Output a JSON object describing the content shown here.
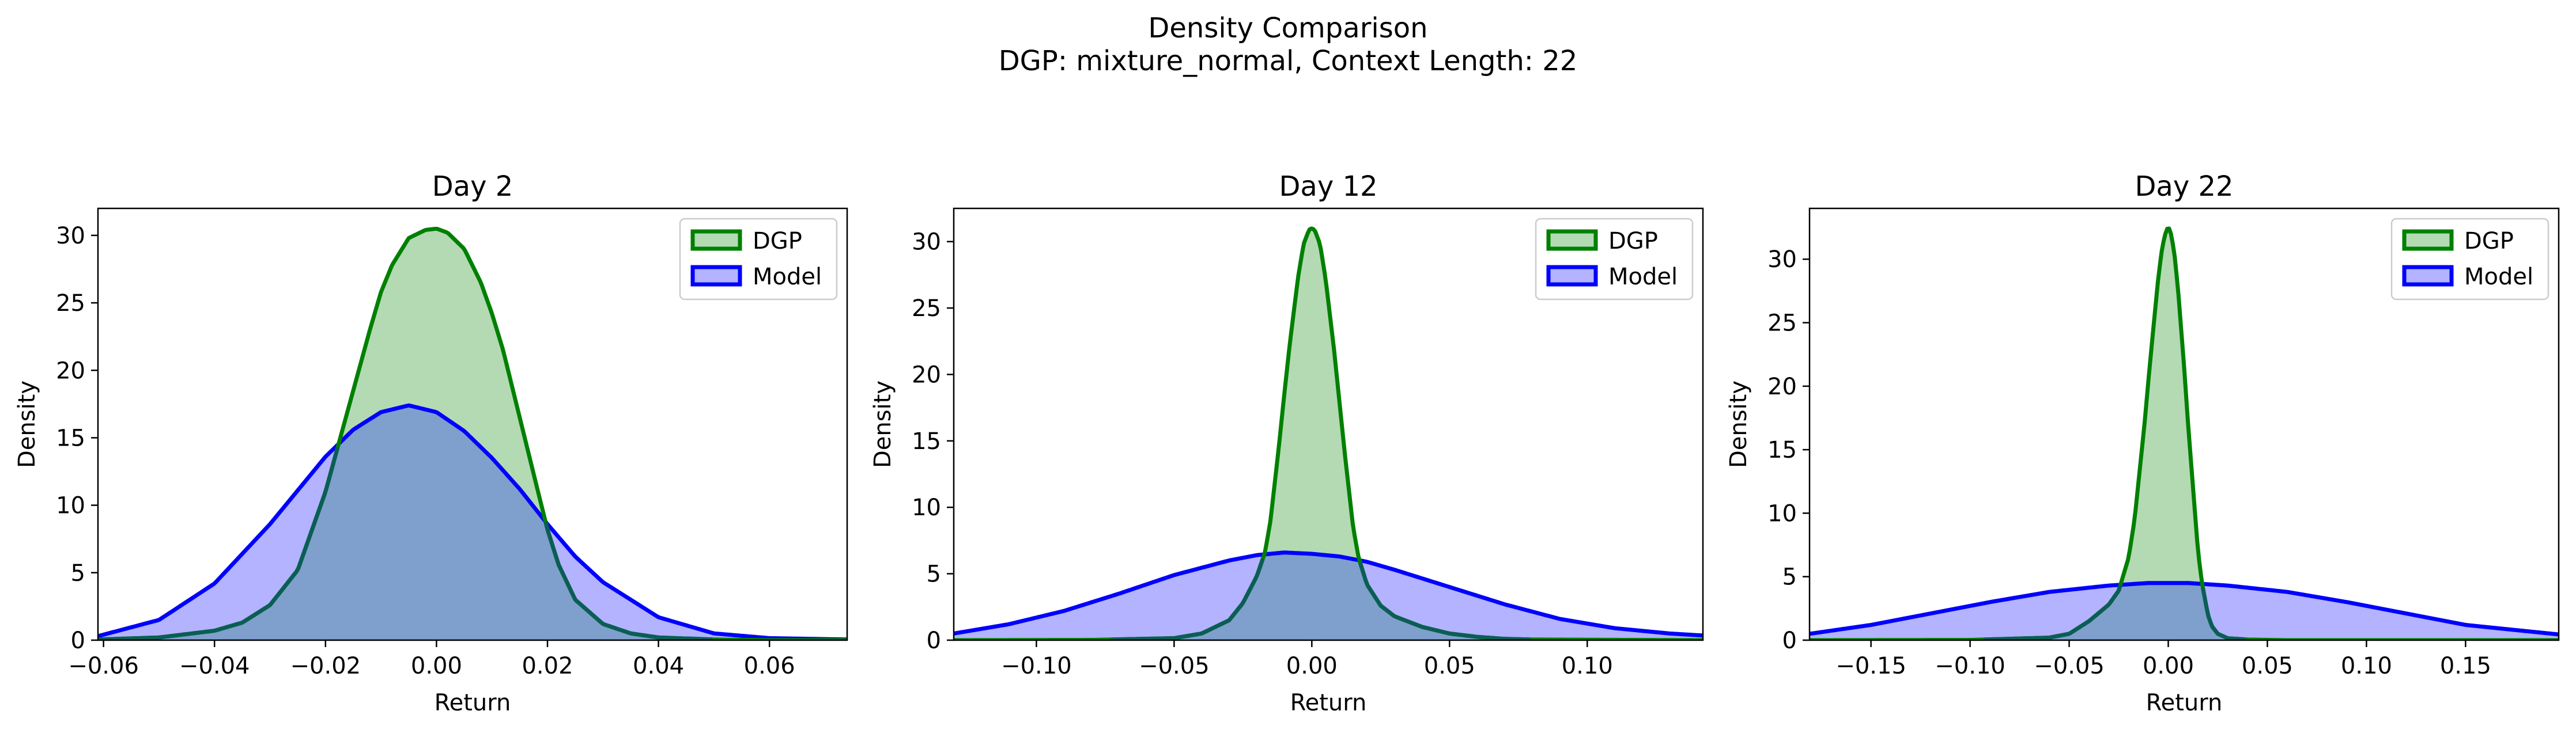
{
  "figure": {
    "title_line1": "Density Comparison",
    "title_line2": "DGP: mixture_normal, Context Length: 22"
  },
  "colors": {
    "dgp_line": "#008000",
    "dgp_fill": "#b3dab3",
    "model_line": "#0000ff",
    "model_fill": "#b3b3ff",
    "overlap_fill": "#7f9fcc"
  },
  "chart_data": [
    {
      "type": "area",
      "title": "Day 2",
      "xlabel": "Return",
      "ylabel": "Density",
      "xlim": [
        -0.061,
        0.074
      ],
      "ylim": [
        0,
        32
      ],
      "xticks": [
        -0.06,
        -0.04,
        -0.02,
        0.0,
        0.02,
        0.04,
        0.06
      ],
      "xtick_labels": [
        "−0.06",
        "−0.04",
        "−0.02",
        "0.00",
        "0.02",
        "0.04",
        "0.06"
      ],
      "yticks": [
        0,
        5,
        10,
        15,
        20,
        25,
        30
      ],
      "ytick_labels": [
        "0",
        "5",
        "10",
        "15",
        "20",
        "25",
        "30"
      ],
      "legend": "top-right",
      "grid": false,
      "series": [
        {
          "name": "DGP",
          "x": [
            -0.061,
            -0.05,
            -0.04,
            -0.035,
            -0.03,
            -0.025,
            -0.02,
            -0.018,
            -0.015,
            -0.012,
            -0.01,
            -0.008,
            -0.005,
            -0.002,
            0.0,
            0.002,
            0.005,
            0.008,
            0.01,
            0.012,
            0.015,
            0.018,
            0.02,
            0.022,
            0.025,
            0.03,
            0.035,
            0.04,
            0.05,
            0.06,
            0.074
          ],
          "y": [
            0.05,
            0.2,
            0.7,
            1.3,
            2.6,
            5.2,
            11.0,
            14.0,
            18.5,
            23.0,
            25.8,
            27.8,
            29.8,
            30.4,
            30.5,
            30.2,
            29.0,
            26.5,
            24.2,
            21.5,
            16.5,
            11.5,
            8.2,
            5.6,
            3.0,
            1.2,
            0.5,
            0.2,
            0.05,
            0.0,
            0.0
          ]
        },
        {
          "name": "Model",
          "x": [
            -0.061,
            -0.05,
            -0.04,
            -0.03,
            -0.025,
            -0.02,
            -0.015,
            -0.01,
            -0.005,
            0.0,
            0.005,
            0.01,
            0.015,
            0.02,
            0.025,
            0.03,
            0.04,
            0.05,
            0.06,
            0.074
          ],
          "y": [
            0.3,
            1.5,
            4.2,
            8.6,
            11.1,
            13.6,
            15.6,
            16.9,
            17.4,
            16.9,
            15.5,
            13.5,
            11.2,
            8.6,
            6.2,
            4.3,
            1.7,
            0.5,
            0.15,
            0.05
          ]
        }
      ]
    },
    {
      "type": "area",
      "title": "Day 12",
      "xlabel": "Return",
      "ylabel": "Density",
      "xlim": [
        -0.13,
        0.142
      ],
      "ylim": [
        0,
        32.5
      ],
      "xticks": [
        -0.1,
        -0.05,
        0.0,
        0.05,
        0.1
      ],
      "xtick_labels": [
        "−0.10",
        "−0.05",
        "0.00",
        "0.05",
        "0.10"
      ],
      "yticks": [
        0,
        5,
        10,
        15,
        20,
        25,
        30
      ],
      "ytick_labels": [
        "0",
        "5",
        "10",
        "15",
        "20",
        "25",
        "30"
      ],
      "legend": "top-right",
      "grid": false,
      "series": [
        {
          "name": "DGP",
          "x": [
            -0.13,
            -0.08,
            -0.05,
            -0.04,
            -0.03,
            -0.025,
            -0.02,
            -0.017,
            -0.015,
            -0.012,
            -0.01,
            -0.008,
            -0.005,
            -0.003,
            -0.001,
            0.0,
            0.001,
            0.003,
            0.005,
            0.008,
            0.01,
            0.012,
            0.015,
            0.017,
            0.02,
            0.025,
            0.03,
            0.04,
            0.05,
            0.06,
            0.07,
            0.08,
            0.142
          ],
          "y": [
            0.0,
            0.02,
            0.15,
            0.5,
            1.5,
            2.8,
            4.8,
            6.6,
            9.0,
            14.5,
            18.5,
            22.3,
            27.3,
            29.8,
            30.9,
            31.0,
            30.9,
            29.8,
            27.2,
            22.0,
            18.0,
            14.0,
            8.5,
            6.2,
            4.2,
            2.6,
            1.8,
            1.0,
            0.5,
            0.25,
            0.1,
            0.05,
            0.0
          ]
        },
        {
          "name": "Model",
          "x": [
            -0.13,
            -0.11,
            -0.09,
            -0.07,
            -0.05,
            -0.03,
            -0.02,
            -0.01,
            0.0,
            0.01,
            0.02,
            0.03,
            0.05,
            0.07,
            0.09,
            0.11,
            0.13,
            0.142
          ],
          "y": [
            0.5,
            1.2,
            2.2,
            3.5,
            4.9,
            6.0,
            6.4,
            6.6,
            6.5,
            6.3,
            5.9,
            5.3,
            4.0,
            2.7,
            1.6,
            0.9,
            0.5,
            0.35
          ]
        }
      ]
    },
    {
      "type": "area",
      "title": "Day 22",
      "xlabel": "Return",
      "ylabel": "Density",
      "xlim": [
        -0.181,
        0.197
      ],
      "ylim": [
        0,
        34
      ],
      "xticks": [
        -0.15,
        -0.1,
        -0.05,
        0.0,
        0.05,
        0.1,
        0.15
      ],
      "xtick_labels": [
        "−0.15",
        "−0.10",
        "−0.05",
        "0.00",
        "0.05",
        "0.10",
        "0.15"
      ],
      "yticks": [
        0,
        5,
        10,
        15,
        20,
        25,
        30
      ],
      "ytick_labels": [
        "0",
        "5",
        "10",
        "15",
        "20",
        "25",
        "30"
      ],
      "legend": "top-right",
      "grid": false,
      "series": [
        {
          "name": "DGP",
          "x": [
            -0.181,
            -0.1,
            -0.06,
            -0.05,
            -0.04,
            -0.03,
            -0.025,
            -0.02,
            -0.017,
            -0.015,
            -0.012,
            -0.01,
            -0.008,
            -0.005,
            -0.003,
            -0.001,
            0.0,
            0.001,
            0.003,
            0.005,
            0.008,
            0.01,
            0.012,
            0.015,
            0.017,
            0.02,
            0.022,
            0.025,
            0.03,
            0.04,
            0.06,
            0.197
          ],
          "y": [
            0.0,
            0.02,
            0.2,
            0.5,
            1.5,
            2.8,
            3.9,
            6.5,
            9.5,
            12.5,
            17.0,
            20.5,
            23.8,
            28.6,
            31.0,
            32.3,
            32.5,
            32.3,
            30.6,
            27.5,
            21.5,
            17.0,
            13.0,
            7.0,
            4.5,
            2.0,
            1.1,
            0.5,
            0.15,
            0.05,
            0.0,
            0.0
          ]
        },
        {
          "name": "Model",
          "x": [
            -0.181,
            -0.15,
            -0.12,
            -0.09,
            -0.06,
            -0.03,
            -0.01,
            0.0,
            0.01,
            0.03,
            0.06,
            0.09,
            0.12,
            0.15,
            0.197
          ],
          "y": [
            0.5,
            1.2,
            2.1,
            3.0,
            3.8,
            4.3,
            4.5,
            4.5,
            4.5,
            4.3,
            3.8,
            3.0,
            2.1,
            1.2,
            0.45
          ]
        }
      ]
    }
  ]
}
